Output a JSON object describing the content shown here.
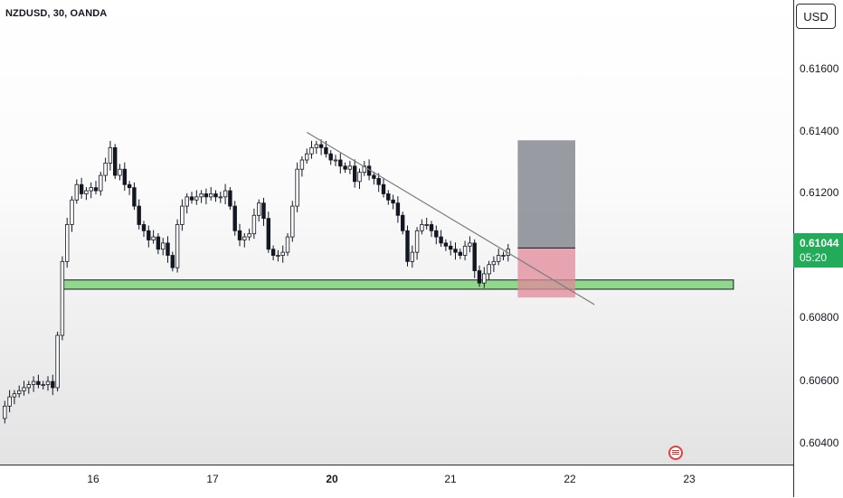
{
  "header": {
    "symbol_title": "NZDUSD, 30, OANDA",
    "currency": "USD"
  },
  "price_badge": {
    "price": "0.61044",
    "countdown": "05:20",
    "color": "#22ab58"
  },
  "colors": {
    "up": "#131722",
    "down": "#131722",
    "zone": "#90d88a",
    "target": "#787b86",
    "stop": "#e08a9a",
    "trendline": "#7b7b7b"
  },
  "icons": {
    "event": "us-flag-icon"
  },
  "chart_data": {
    "type": "candlestick",
    "title": "NZDUSD, 30, OANDA",
    "ylim": [
      0.6034,
      0.6185
    ],
    "x_range": [
      0,
      171
    ],
    "y_ticks": [
      "0.60400",
      "0.60600",
      "0.60800",
      "0.61000",
      "0.61200",
      "0.61400",
      "0.61600"
    ],
    "x_ticks": [
      {
        "label": "16",
        "x": 23,
        "bold": false
      },
      {
        "label": "17",
        "x": 46,
        "bold": false
      },
      {
        "label": "20",
        "x": 69,
        "bold": true
      },
      {
        "label": "21",
        "x": 93,
        "bold": false
      },
      {
        "label": "22",
        "x": 119,
        "bold": false
      },
      {
        "label": "23",
        "x": 143,
        "bold": false
      }
    ],
    "close_path": [
      [
        0,
        0.6049
      ],
      [
        1,
        0.6053
      ],
      [
        2,
        0.6056
      ],
      [
        3,
        0.6057
      ],
      [
        4,
        0.6058
      ],
      [
        5,
        0.6059
      ],
      [
        6,
        0.606
      ],
      [
        7,
        0.6061
      ],
      [
        8,
        0.606
      ],
      [
        9,
        0.606
      ],
      [
        10,
        0.6061
      ],
      [
        11,
        0.6059
      ],
      [
        12,
        0.6076
      ],
      [
        13,
        0.61
      ],
      [
        14,
        0.6112
      ],
      [
        15,
        0.612
      ],
      [
        16,
        0.6125
      ],
      [
        17,
        0.6122
      ],
      [
        18,
        0.6123
      ],
      [
        19,
        0.6124
      ],
      [
        20,
        0.6123
      ],
      [
        21,
        0.6128
      ],
      [
        22,
        0.6132
      ],
      [
        23,
        0.6137
      ],
      [
        24,
        0.6128
      ],
      [
        25,
        0.613
      ],
      [
        26,
        0.6125
      ],
      [
        27,
        0.6124
      ],
      [
        28,
        0.6118
      ],
      [
        29,
        0.6112
      ],
      [
        30,
        0.611
      ],
      [
        31,
        0.6107
      ],
      [
        32,
        0.6108
      ],
      [
        33,
        0.6104
      ],
      [
        34,
        0.6106
      ],
      [
        35,
        0.6102
      ],
      [
        36,
        0.6098
      ],
      [
        37,
        0.6112
      ],
      [
        38,
        0.6118
      ],
      [
        39,
        0.6121
      ],
      [
        40,
        0.612
      ],
      [
        41,
        0.6121
      ],
      [
        42,
        0.6122
      ],
      [
        43,
        0.6121
      ],
      [
        44,
        0.6122
      ],
      [
        45,
        0.6121
      ],
      [
        46,
        0.6121
      ],
      [
        47,
        0.6123
      ],
      [
        48,
        0.6118
      ],
      [
        49,
        0.611
      ],
      [
        50,
        0.6107
      ],
      [
        51,
        0.6108
      ],
      [
        52,
        0.6109
      ],
      [
        53,
        0.6115
      ],
      [
        54,
        0.6119
      ],
      [
        55,
        0.6114
      ],
      [
        56,
        0.6104
      ],
      [
        57,
        0.6102
      ],
      [
        58,
        0.6102
      ],
      [
        59,
        0.6103
      ],
      [
        60,
        0.6108
      ],
      [
        61,
        0.6118
      ],
      [
        62,
        0.613
      ],
      [
        63,
        0.6133
      ],
      [
        64,
        0.6135
      ],
      [
        65,
        0.6137
      ],
      [
        66,
        0.6138
      ],
      [
        67,
        0.6137
      ],
      [
        68,
        0.6135
      ],
      [
        69,
        0.6133
      ],
      [
        70,
        0.6133
      ],
      [
        71,
        0.6131
      ],
      [
        72,
        0.613
      ],
      [
        73,
        0.6131
      ],
      [
        74,
        0.6126
      ],
      [
        75,
        0.6129
      ],
      [
        76,
        0.6131
      ],
      [
        77,
        0.6128
      ],
      [
        78,
        0.6127
      ],
      [
        79,
        0.6125
      ],
      [
        80,
        0.6122
      ],
      [
        81,
        0.612
      ],
      [
        82,
        0.6119
      ],
      [
        83,
        0.6115
      ],
      [
        84,
        0.611
      ],
      [
        85,
        0.61
      ],
      [
        86,
        0.6103
      ],
      [
        87,
        0.611
      ],
      [
        88,
        0.6112
      ],
      [
        89,
        0.6112
      ],
      [
        90,
        0.611
      ],
      [
        91,
        0.6108
      ],
      [
        92,
        0.6106
      ],
      [
        93,
        0.6105
      ],
      [
        94,
        0.6104
      ],
      [
        95,
        0.6103
      ],
      [
        96,
        0.6102
      ],
      [
        97,
        0.6105
      ],
      [
        98,
        0.6106
      ],
      [
        99,
        0.6097
      ],
      [
        100,
        0.6093
      ],
      [
        101,
        0.6096
      ],
      [
        102,
        0.6099
      ],
      [
        103,
        0.61
      ],
      [
        104,
        0.6102
      ],
      [
        105,
        0.6102
      ],
      [
        106,
        0.6104
      ]
    ],
    "support_zone": {
      "x": [
        13,
        153
      ],
      "y": [
        0.6091,
        0.6094
      ]
    },
    "trendline": {
      "x": [
        64,
        124
      ],
      "y": [
        0.6142,
        0.6086
      ]
    },
    "position": {
      "x": [
        108,
        120
      ],
      "entry": 0.61044,
      "target": 0.61394,
      "stop": 0.60883
    }
  }
}
